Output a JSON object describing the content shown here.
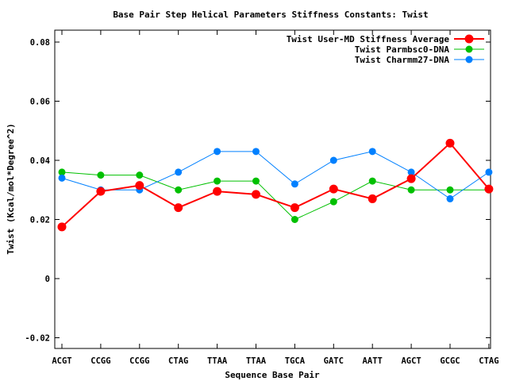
{
  "chart_data": {
    "type": "line",
    "title": "Base Pair Step Helical Parameters Stiffness Constants: Twist",
    "xlabel": "Sequence Base Pair",
    "ylabel": "Twist (Kcal/mol*Degree^2)",
    "categories": [
      "ACGT",
      "CCGG",
      "CCGG",
      "CTAG",
      "TTAA",
      "TTAA",
      "TGCA",
      "GATC",
      "AATT",
      "AGCT",
      "GCGC",
      "CTAG"
    ],
    "ylim": [
      -0.024,
      0.084
    ],
    "yticks": [
      -0.02,
      0,
      0.02,
      0.04,
      0.06,
      0.08
    ],
    "ytick_labels": [
      "-0.02",
      "0",
      "0.02",
      "0.04",
      "0.06",
      "0.08"
    ],
    "legend_position": "top-right",
    "grid": false,
    "series": [
      {
        "name": "Twist User-MD Stiffness Average",
        "color": "#ff0000",
        "marker": "large-circle",
        "values": [
          0.0175,
          0.0295,
          0.0315,
          0.024,
          0.0295,
          0.0285,
          0.024,
          0.0303,
          0.027,
          0.0338,
          0.0458,
          0.0303
        ]
      },
      {
        "name": "Twist Parmbsc0-DNA",
        "color": "#00c000",
        "marker": "circle",
        "values": [
          0.036,
          0.035,
          0.035,
          0.03,
          0.033,
          0.033,
          0.02,
          0.026,
          0.033,
          0.03,
          0.03,
          0.03
        ]
      },
      {
        "name": "Twist Charmm27-DNA",
        "color": "#0080ff",
        "marker": "circle",
        "values": [
          0.034,
          0.03,
          0.03,
          0.036,
          0.043,
          0.043,
          0.032,
          0.04,
          0.043,
          0.036,
          0.027,
          0.036
        ]
      }
    ]
  }
}
